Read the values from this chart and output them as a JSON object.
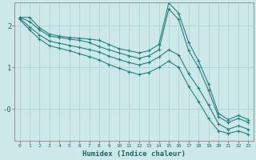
{
  "xlabel": "Humidex (Indice chaleur)",
  "bg_color": "#cce8e8",
  "grid_color": "#afd4d4",
  "line_color": "#2a8080",
  "xlim": [
    -0.5,
    23.5
  ],
  "ylim": [
    -0.75,
    2.55
  ],
  "yticks": [
    0,
    1,
    2
  ],
  "ytick_labels": [
    "-0",
    "1",
    "2"
  ],
  "lines": [
    [
      2.2,
      2.2,
      1.95,
      1.8,
      1.75,
      1.72,
      1.7,
      1.68,
      1.65,
      1.55,
      1.45,
      1.4,
      1.35,
      1.4,
      1.55,
      2.55,
      2.3,
      1.6,
      1.15,
      0.6,
      -0.1,
      -0.25,
      -0.15,
      -0.25
    ],
    [
      2.2,
      2.1,
      1.9,
      1.75,
      1.72,
      1.68,
      1.65,
      1.6,
      1.5,
      1.42,
      1.35,
      1.28,
      1.22,
      1.28,
      1.42,
      2.4,
      2.15,
      1.4,
      1.0,
      0.45,
      -0.18,
      -0.32,
      -0.22,
      -0.32
    ],
    [
      2.18,
      1.97,
      1.78,
      1.63,
      1.58,
      1.53,
      1.48,
      1.43,
      1.37,
      1.27,
      1.19,
      1.12,
      1.06,
      1.12,
      1.25,
      1.42,
      1.3,
      0.85,
      0.5,
      0.1,
      -0.35,
      -0.48,
      -0.4,
      -0.48
    ],
    [
      2.15,
      1.9,
      1.68,
      1.52,
      1.46,
      1.4,
      1.33,
      1.26,
      1.18,
      1.07,
      0.98,
      0.9,
      0.83,
      0.88,
      1.0,
      1.15,
      1.0,
      0.55,
      0.18,
      -0.22,
      -0.52,
      -0.58,
      -0.52,
      -0.6
    ]
  ]
}
